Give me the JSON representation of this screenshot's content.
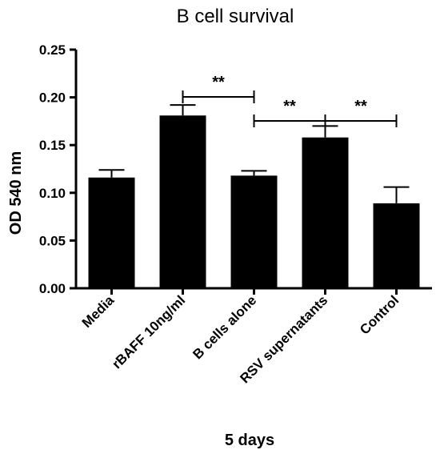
{
  "chart_data": {
    "type": "bar",
    "title": "B cell survival",
    "xlabel": "5 days",
    "ylabel": "OD 540 nm",
    "ylim": [
      0,
      0.25
    ],
    "yticks": [
      "0.00",
      "0.05",
      "0.10",
      "0.15",
      "0.20",
      "0.25"
    ],
    "categories": [
      "Media",
      "rBAFF 10ng/ml",
      "B cells alone",
      "RSV supernatants",
      "Control"
    ],
    "values": [
      0.116,
      0.181,
      0.118,
      0.158,
      0.089
    ],
    "errors": [
      0.008,
      0.011,
      0.005,
      0.012,
      0.017
    ],
    "bar_color": "#000000",
    "grid": false,
    "significance": [
      {
        "from": 1,
        "to": 2,
        "label": "**"
      },
      {
        "from": 2,
        "to": 3,
        "label": "**"
      },
      {
        "from": 3,
        "to": 4,
        "label": "**"
      }
    ]
  }
}
